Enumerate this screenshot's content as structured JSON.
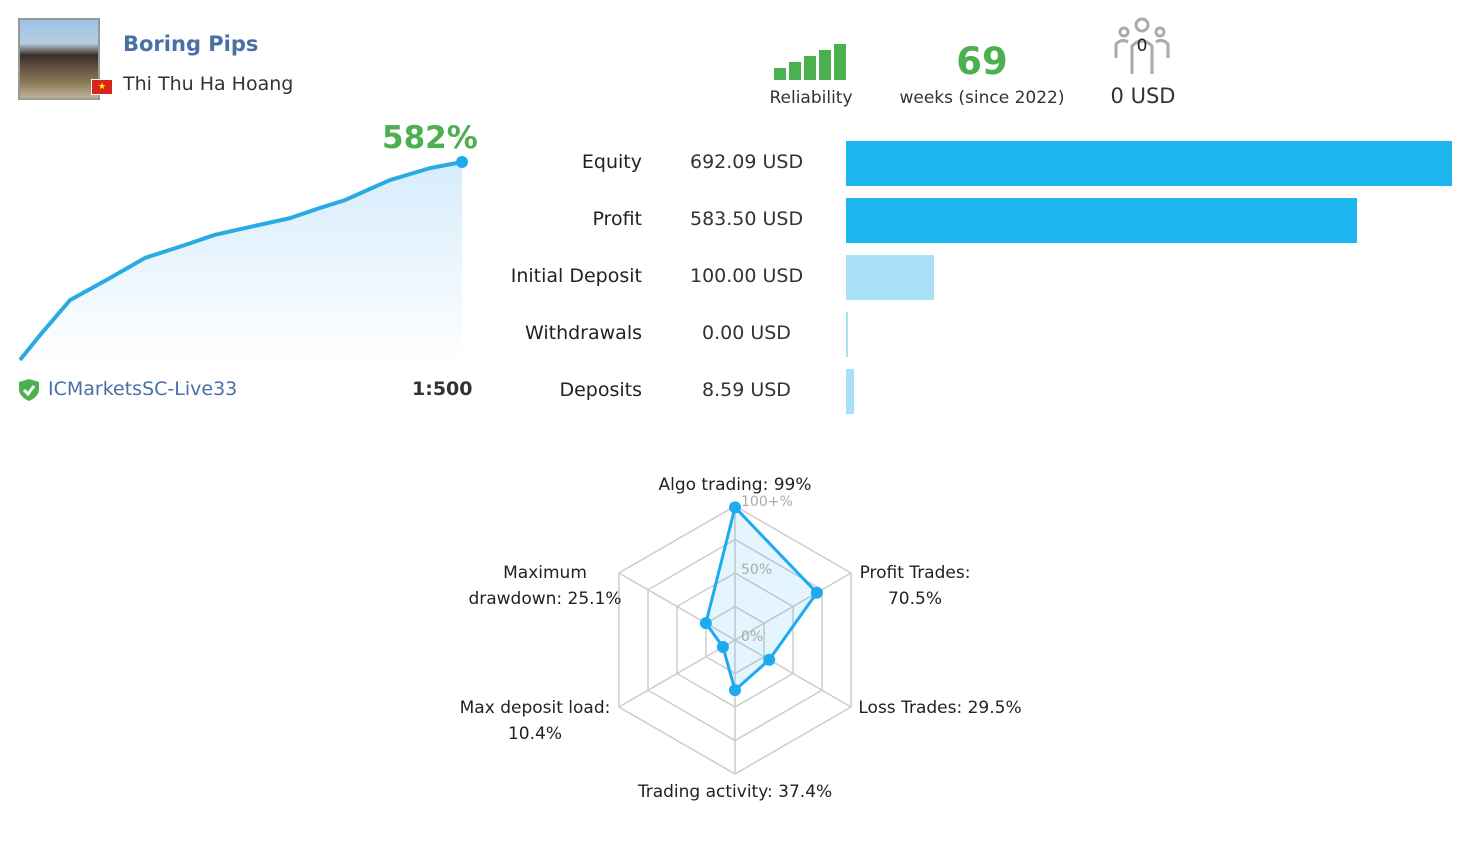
{
  "profile": {
    "name": "Boring Pips",
    "owner": "Thi Thu Ha Hoang",
    "country_flag": "vietnam-flag"
  },
  "growth": {
    "percent": "582%",
    "server": "ICMarketsSC-Live33",
    "leverage": "1:500",
    "curve_percent": [
      0,
      73,
      176,
      241,
      300,
      338,
      368,
      391,
      417,
      447,
      470,
      529,
      564,
      582
    ]
  },
  "stats": {
    "reliability_label": "Reliability",
    "reliability_bars": 5,
    "weeks": "69",
    "weeks_label": "weeks (since 2022)",
    "subscribers": "0",
    "subscribers_value": "0 USD"
  },
  "balances": [
    {
      "label": "Equity",
      "value": "692.09 USD",
      "amount": 692.09,
      "color": "#1eb6ee"
    },
    {
      "label": "Profit",
      "value": "583.50 USD",
      "amount": 583.5,
      "color": "#1eb6ee"
    },
    {
      "label": "Initial Deposit",
      "value": "100.00 USD",
      "amount": 100.0,
      "color": "#a8e0f6"
    },
    {
      "label": "Withdrawals",
      "value": "0.00 USD",
      "amount": 0,
      "color": "#a8e0f6"
    },
    {
      "label": "Deposits",
      "value": "8.59 USD",
      "amount": 8.59,
      "color": "#a8e0f6"
    }
  ],
  "chart_data": {
    "type": "radar",
    "scale_labels": [
      "100+%",
      "50%",
      "0%"
    ],
    "axes": [
      {
        "label": "Algo trading: 99%",
        "value": 99
      },
      {
        "label": "Profit Trades: 70.5%",
        "value": 70.5
      },
      {
        "label": "Loss Trades: 29.5%",
        "value": 29.5
      },
      {
        "label": "Trading activity: 37.4%",
        "value": 37.4
      },
      {
        "label": "Max deposit load: 10.4%",
        "value": 10.4
      },
      {
        "label": "Maximum drawdown: 25.1%",
        "value": 25.1
      }
    ]
  }
}
